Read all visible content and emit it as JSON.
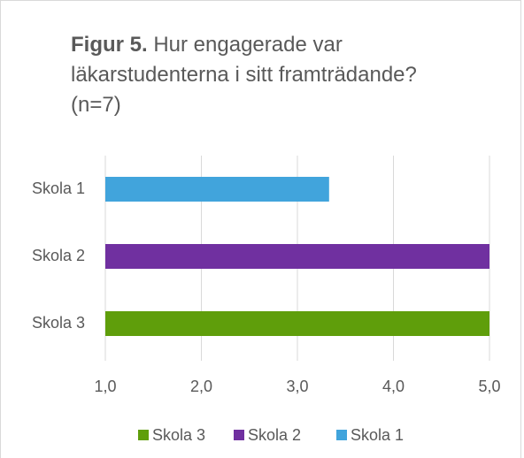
{
  "chart_data": {
    "type": "bar",
    "orientation": "horizontal",
    "title_bold": "Figur 5.",
    "title": "Hur engagerade var läkarstudenterna i sitt framträdande? (n=7)",
    "categories": [
      "Skola 1",
      "Skola 2",
      "Skola 3"
    ],
    "values": [
      3.33,
      5,
      5
    ],
    "colors": [
      "#41a4dc",
      "#7030a0",
      "#5f9e0b"
    ],
    "xlim": [
      1,
      5
    ],
    "xticks": [
      {
        "value": 1,
        "label": "1,0"
      },
      {
        "value": 2,
        "label": "2,0"
      },
      {
        "value": 3,
        "label": "3,0"
      },
      {
        "value": 4,
        "label": "4,0"
      },
      {
        "value": 5,
        "label": "5,0"
      }
    ],
    "grid": true,
    "legend": "bottom"
  }
}
